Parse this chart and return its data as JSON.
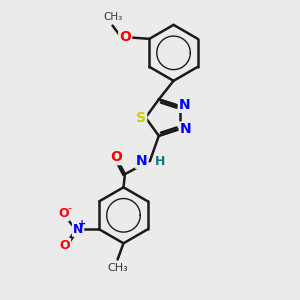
{
  "bg_color": "#ebebeb",
  "bond_color": "#1a1a1a",
  "bond_width": 1.8,
  "atom_colors": {
    "O": "#ff0000",
    "N": "#0000ff",
    "S": "#cccc00",
    "H": "#008080",
    "C": "#1a1a1a"
  },
  "fig_size": [
    3.0,
    3.0
  ],
  "dpi": 100,
  "xlim": [
    -3.5,
    3.5
  ],
  "ylim": [
    -5.5,
    4.5
  ]
}
